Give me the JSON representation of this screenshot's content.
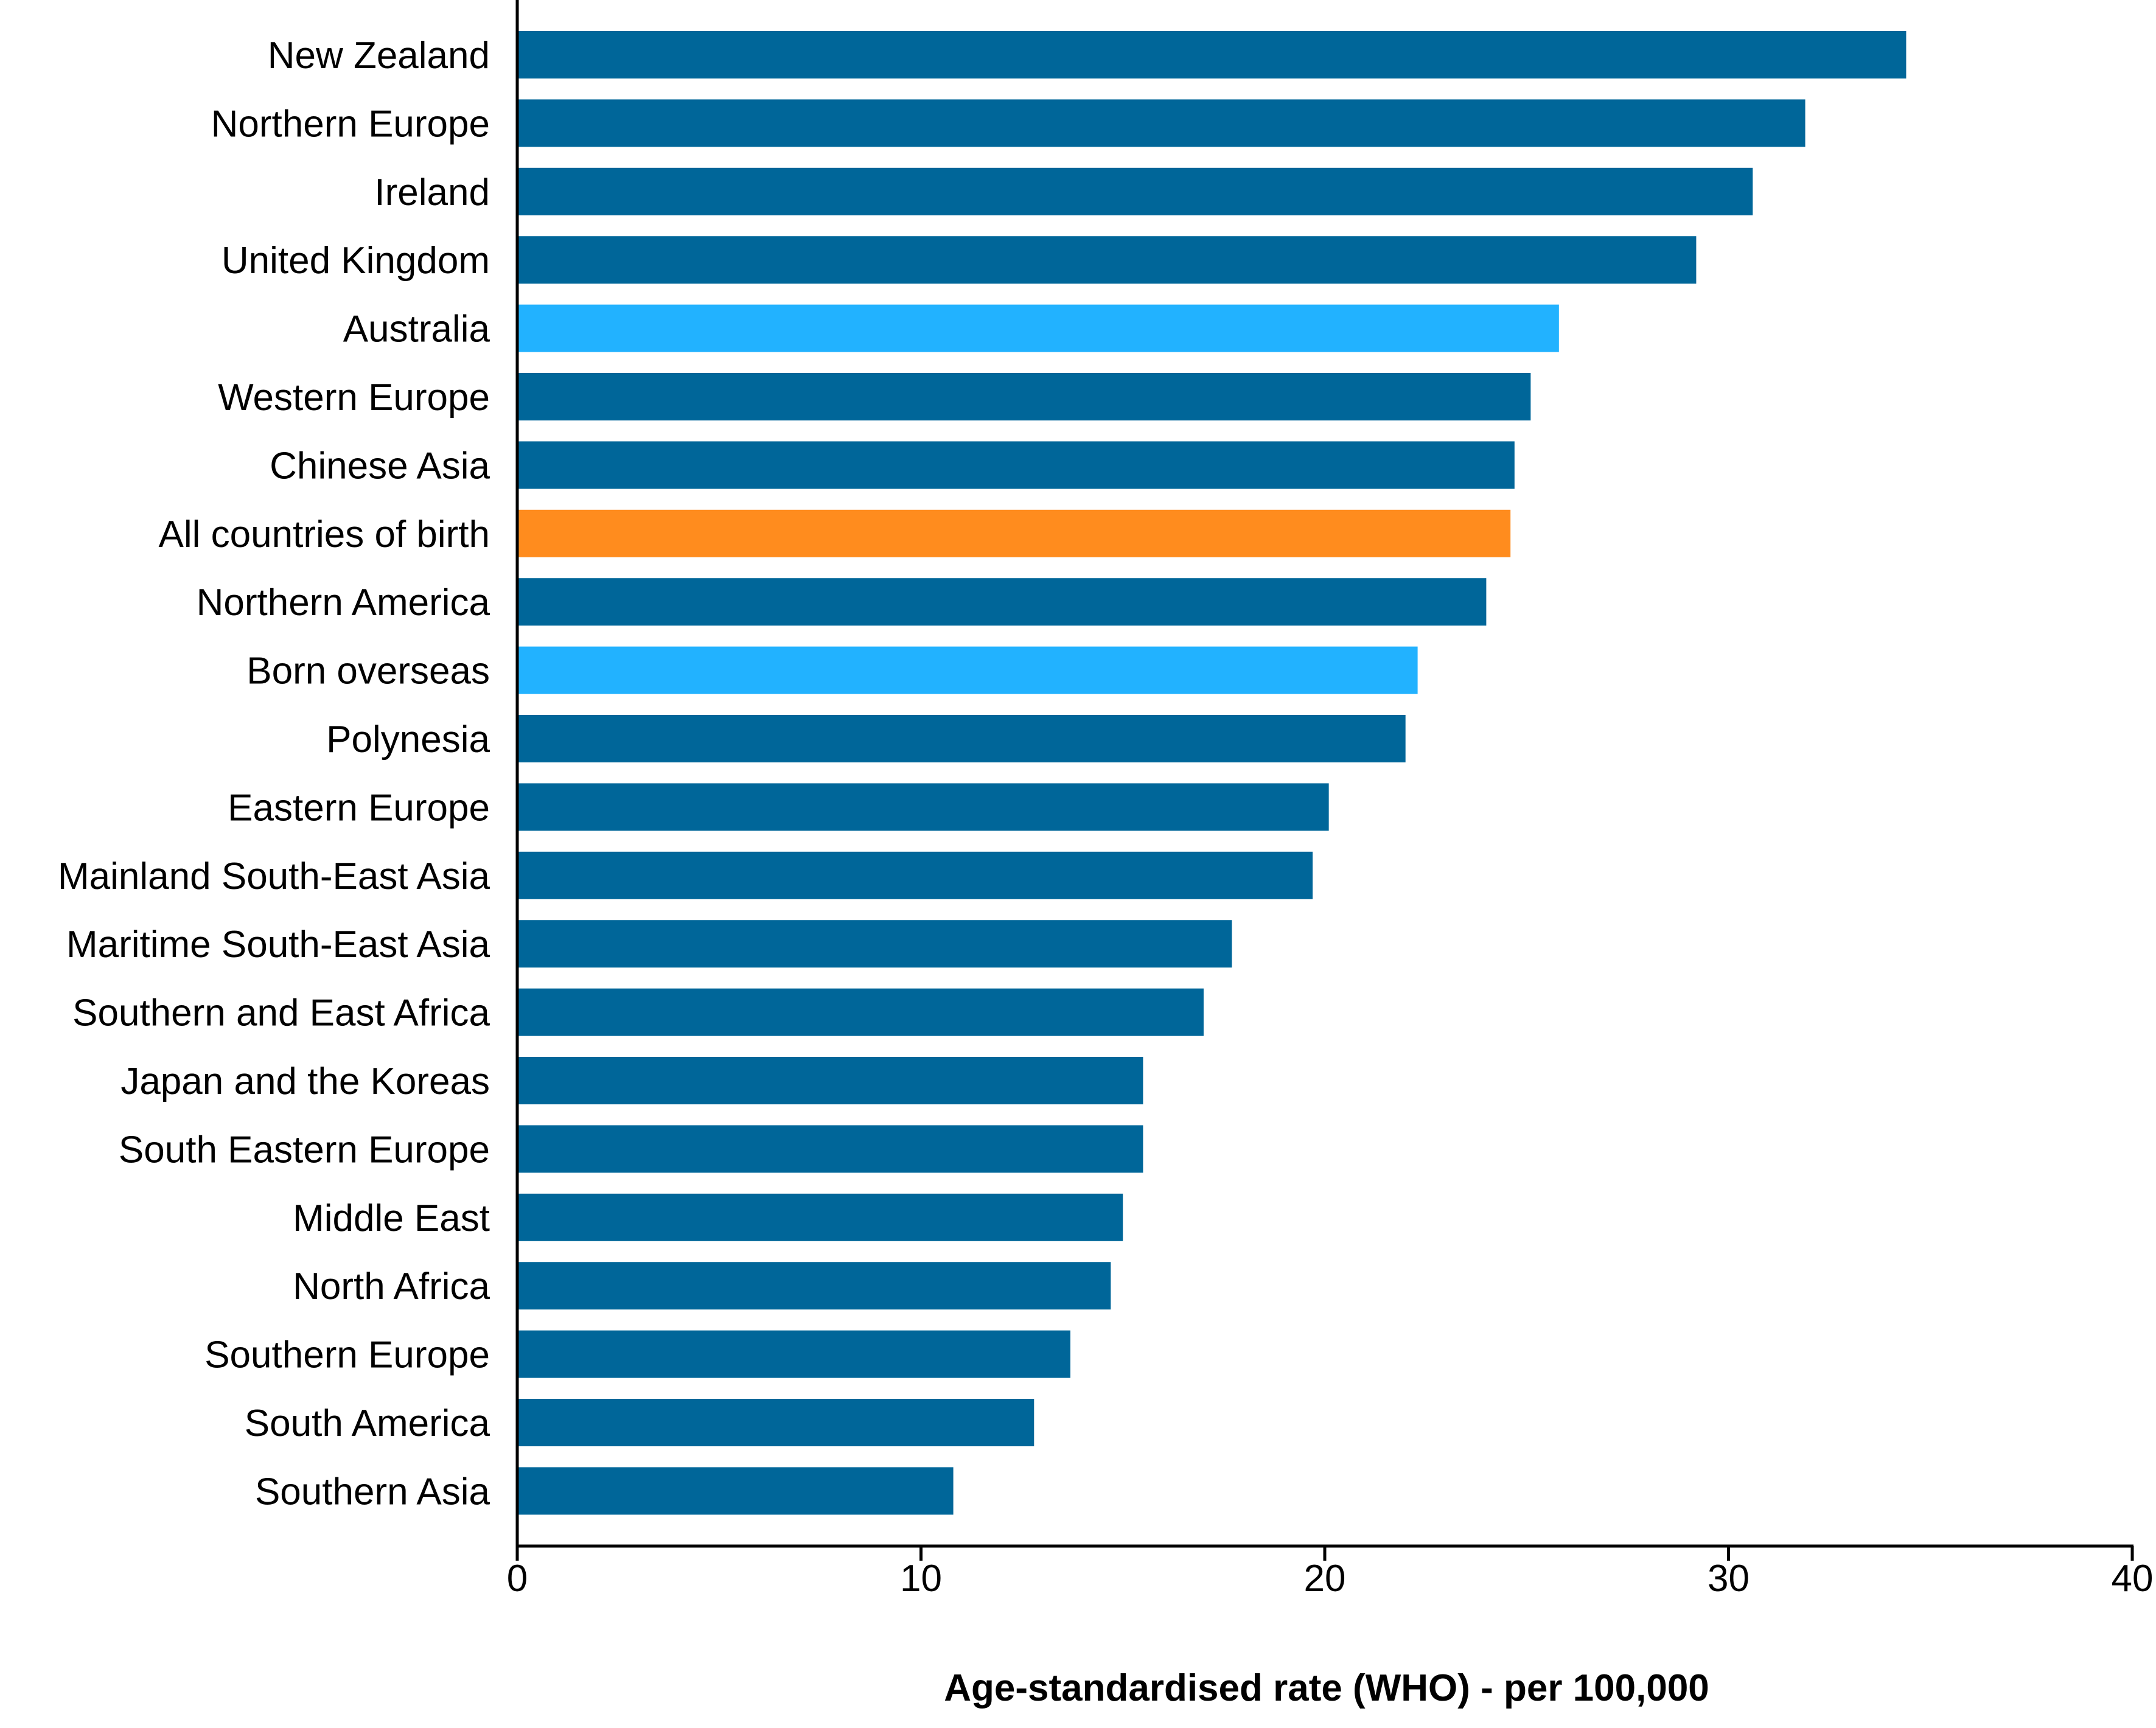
{
  "chart_data": {
    "type": "bar",
    "orientation": "horizontal",
    "title": "",
    "xlabel": "Age-standardised rate (WHO) - per 100,000",
    "ylabel": "",
    "xlim": [
      0,
      40
    ],
    "xticks": [
      "0",
      "10",
      "20",
      "30",
      "40"
    ],
    "grid": false,
    "legend": "none",
    "colors": {
      "default": "#006699",
      "australia_born": "#22B2FF",
      "all": "#FF8C1E",
      "axis": "#000000"
    },
    "categories": [
      "New Zealand",
      "Northern Europe",
      "Ireland",
      "United Kingdom",
      "Australia",
      "Western Europe",
      "Chinese Asia",
      "All countries of birth",
      "Northern America",
      "Born overseas",
      "Polynesia",
      "Eastern Europe",
      "Mainland South-East Asia",
      "Maritime South-East Asia",
      "Southern and East Africa",
      "Japan and the Koreas",
      "South Eastern Europe",
      "Middle East",
      "North Africa",
      "Southern Europe",
      "South America",
      "Southern Asia"
    ],
    "values": [
      34.4,
      31.9,
      30.6,
      29.2,
      25.8,
      25.1,
      24.7,
      24.6,
      24.0,
      22.3,
      22.0,
      20.1,
      19.7,
      17.7,
      17.0,
      15.5,
      15.5,
      15.0,
      14.7,
      13.7,
      12.8,
      10.8
    ],
    "highlight": {
      "Australia": "australia_born",
      "Born overseas": "australia_born",
      "All countries of birth": "all"
    }
  }
}
